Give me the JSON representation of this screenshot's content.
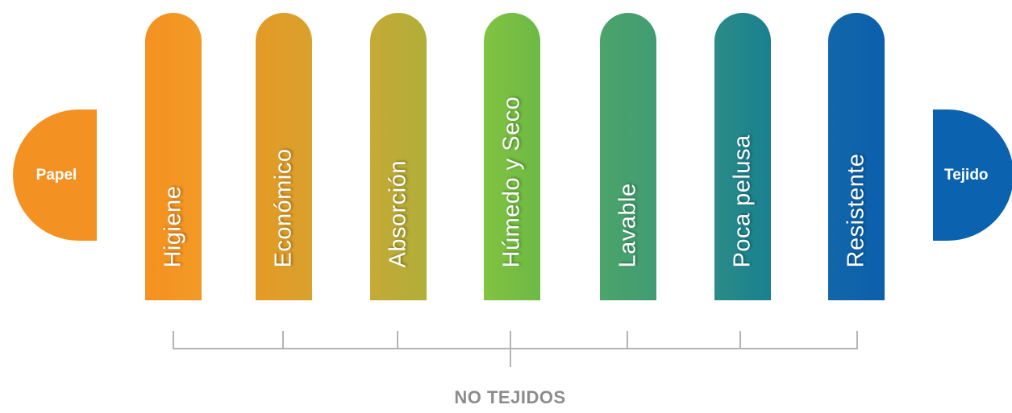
{
  "caps": {
    "left": {
      "label": "Papel",
      "color": "#f39223"
    },
    "right": {
      "label": "Tejido",
      "color": "#0b63b0"
    }
  },
  "properties": [
    {
      "label": "Higiene",
      "color": "#f39120"
    },
    {
      "label": "Económico",
      "color": "#e49a25"
    },
    {
      "label": "Absorción",
      "color": "#bcab37"
    },
    {
      "label": "Húmedo y Seco",
      "color": "#77be43"
    },
    {
      "label": "Lavable",
      "color": "#46a06e"
    },
    {
      "label": "Poca pelusa",
      "color": "#22868c"
    },
    {
      "label": "Resistente",
      "color": "#0e63ab"
    }
  ],
  "group": {
    "label": "NO TEJIDOS",
    "color": "#8c8c8c"
  }
}
